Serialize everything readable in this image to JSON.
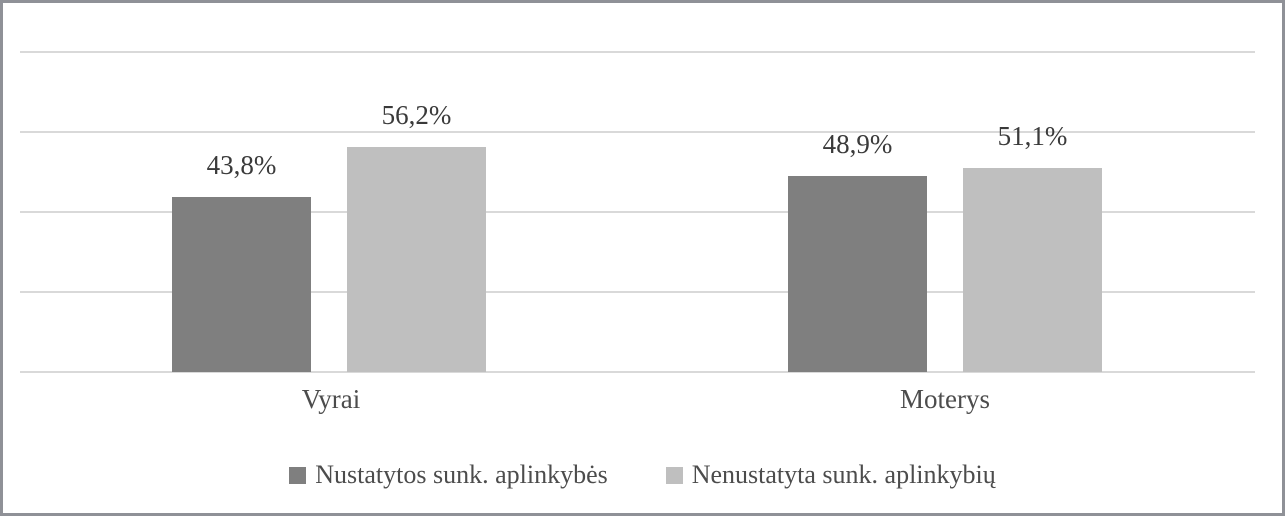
{
  "chart_data": {
    "type": "bar",
    "categories": [
      "Vyrai",
      "Moterys"
    ],
    "series": [
      {
        "name": "Nustatytos sunk. aplinkybės",
        "values": [
          43.8,
          48.9
        ],
        "data_labels": [
          "43,8%",
          "48,9%"
        ],
        "color": "#7f7f7f"
      },
      {
        "name": "Nenustatyta sunk. aplinkybių",
        "values": [
          56.2,
          51.1
        ],
        "data_labels": [
          "56,2%",
          "51,1%"
        ],
        "color": "#bfbfbf"
      }
    ],
    "title": "",
    "xlabel": "",
    "ylabel": "",
    "ylim": [
      0,
      80
    ],
    "gridline_values": [
      0,
      20,
      40,
      60,
      80
    ],
    "grid": true,
    "y_tick_labels_visible": false,
    "legend_position": "bottom",
    "value_format": "decimal-comma percent"
  },
  "colors": {
    "background": "#ffffff",
    "frame_border": "#8f9197",
    "gridline": "#d9d9d9",
    "value_label_text": "#3a3a3a",
    "axis_label_text": "#4c4c4c",
    "legend_text": "#4c4c4c",
    "series_dark": "#7f7f7f",
    "series_light": "#bfbfbf"
  }
}
